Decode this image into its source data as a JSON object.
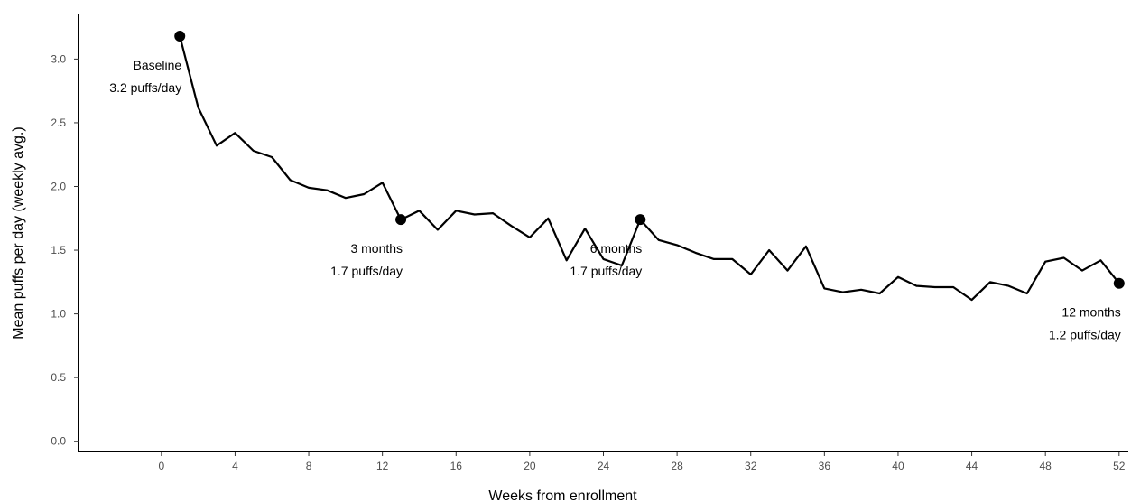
{
  "chart_data": {
    "type": "line",
    "xlabel": "Weeks from enrollment",
    "ylabel": "Mean puffs per day (weekly avg.)",
    "xlim": [
      -4.5,
      52.5
    ],
    "ylim": [
      -0.08,
      3.35
    ],
    "x_ticks": [
      0,
      4,
      8,
      12,
      16,
      20,
      24,
      28,
      32,
      36,
      40,
      44,
      48,
      52
    ],
    "y_ticks": [
      0.0,
      0.5,
      1.0,
      1.5,
      2.0,
      2.5,
      3.0
    ],
    "y_tick_labels": [
      "0.0",
      "0.5",
      "1.0",
      "1.5",
      "2.0",
      "2.5",
      "3.0"
    ],
    "grid": false,
    "series": [
      {
        "x": [
          1,
          2,
          3,
          4,
          5,
          6,
          7,
          8,
          9,
          10,
          11,
          12,
          13,
          14,
          15,
          16,
          17,
          18,
          19,
          20,
          21,
          22,
          23,
          24,
          25,
          26,
          27,
          28,
          29,
          30,
          31,
          32,
          33,
          34,
          35,
          36,
          37,
          38,
          39,
          40,
          41,
          42,
          43,
          44,
          45,
          46,
          47,
          48,
          49,
          50,
          51,
          52
        ],
        "values": [
          3.18,
          2.62,
          2.32,
          2.42,
          2.28,
          2.23,
          2.05,
          1.99,
          1.97,
          1.91,
          1.94,
          2.03,
          1.74,
          1.81,
          1.66,
          1.81,
          1.78,
          1.79,
          1.69,
          1.6,
          1.75,
          1.42,
          1.67,
          1.43,
          1.38,
          1.74,
          1.58,
          1.54,
          1.48,
          1.43,
          1.43,
          1.31,
          1.5,
          1.34,
          1.53,
          1.2,
          1.17,
          1.19,
          1.16,
          1.29,
          1.22,
          1.21,
          1.21,
          1.11,
          1.25,
          1.22,
          1.16,
          1.41,
          1.44,
          1.34,
          1.42,
          1.24
        ]
      }
    ],
    "highlights": [
      {
        "x": 1,
        "y": 3.18,
        "line1": "Baseline",
        "line2": "3.2 puffs/day",
        "pos": "below-left"
      },
      {
        "x": 13,
        "y": 1.74,
        "line1": "3 months",
        "line2": "1.7 puffs/day",
        "pos": "below-left"
      },
      {
        "x": 26,
        "y": 1.74,
        "line1": "6 months",
        "line2": "1.7 puffs/day",
        "pos": "below-left"
      },
      {
        "x": 52,
        "y": 1.24,
        "line1": "12 months",
        "line2": "1.2 puffs/day",
        "pos": "below-left"
      }
    ]
  }
}
